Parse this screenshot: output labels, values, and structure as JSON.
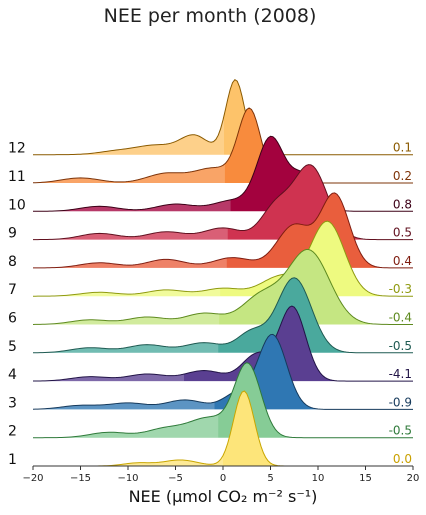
{
  "chart_data": {
    "type": "ridgeline",
    "title": "NEE per month (2008)",
    "xlabel": "NEE (µmol CO₂ m⁻² s⁻¹)",
    "xlim": [
      -20,
      20
    ],
    "xticks": [
      -20,
      -15,
      -10,
      -5,
      0,
      5,
      10,
      15,
      20
    ],
    "series": [
      {
        "month": "1",
        "value": "0.0",
        "color": "#fde57a",
        "stroke": "#c9a600",
        "text_color": "#c9a000",
        "mean": 0.0,
        "peaks": [
          [
            2.2,
            1.0,
            1.1
          ],
          [
            -4.5,
            0.08,
            1.8
          ],
          [
            -9,
            0.04,
            1.5
          ]
        ]
      },
      {
        "month": "2",
        "value": "-0.5",
        "color": "#86cc96",
        "stroke": "#2f7a3a",
        "text_color": "#2f7a3a",
        "mean": -0.5,
        "peaks": [
          [
            2.6,
            0.95,
            1.4
          ],
          [
            -1.5,
            0.25,
            2.0
          ],
          [
            -6,
            0.12,
            2.0
          ],
          [
            -12,
            0.07,
            2.0
          ]
        ]
      },
      {
        "month": "3",
        "value": "-0.9",
        "color": "#2f77b3",
        "stroke": "#163a5c",
        "text_color": "#163a5c",
        "mean": -0.9,
        "peaks": [
          [
            5.2,
            0.95,
            1.5
          ],
          [
            1.5,
            0.2,
            1.5
          ],
          [
            -4,
            0.12,
            2.0
          ],
          [
            -10,
            0.08,
            2.0
          ],
          [
            -15,
            0.05,
            2.0
          ]
        ]
      },
      {
        "month": "4",
        "value": "-4.1",
        "color": "#5a3f91",
        "stroke": "#221447",
        "text_color": "#221447",
        "mean": -4.1,
        "peaks": [
          [
            7.3,
            0.85,
            1.4
          ],
          [
            3.5,
            0.3,
            1.5
          ],
          [
            -2,
            0.12,
            2.0
          ],
          [
            -8,
            0.08,
            2.0
          ],
          [
            -14,
            0.05,
            2.0
          ]
        ]
      },
      {
        "month": "5",
        "value": "-0.5",
        "color": "#4aa99d",
        "stroke": "#1f5a52",
        "text_color": "#1f5a52",
        "mean": -0.5,
        "peaks": [
          [
            7.5,
            0.75,
            1.8
          ],
          [
            3.0,
            0.2,
            1.5
          ],
          [
            -2,
            0.1,
            2.0
          ],
          [
            -8,
            0.08,
            2.0
          ],
          [
            -14,
            0.05,
            2.0
          ]
        ]
      },
      {
        "month": "6",
        "value": "-0.4",
        "color": "#c5e682",
        "stroke": "#5e8a1f",
        "text_color": "#5e8a1f",
        "mean": -0.4,
        "peaks": [
          [
            9.0,
            0.8,
            2.2
          ],
          [
            4.0,
            0.3,
            2.0
          ],
          [
            -2,
            0.12,
            2.0
          ],
          [
            -8,
            0.08,
            2.0
          ],
          [
            -14,
            0.05,
            2.0
          ]
        ]
      },
      {
        "month": "7",
        "value": "-0.3",
        "color": "#eefa80",
        "stroke": "#8f9a10",
        "text_color": "#8f9a10",
        "mean": -0.3,
        "peaks": [
          [
            11.0,
            0.95,
            1.8
          ],
          [
            6.0,
            0.25,
            2.0
          ],
          [
            0,
            0.1,
            2.0
          ],
          [
            -6,
            0.08,
            2.0
          ],
          [
            -13,
            0.05,
            2.0
          ]
        ]
      },
      {
        "month": "8",
        "value": "0.4",
        "color": "#e95e3d",
        "stroke": "#7f1d10",
        "text_color": "#7f1d10",
        "mean": 0.4,
        "peaks": [
          [
            11.8,
            0.85,
            1.5
          ],
          [
            7.5,
            0.5,
            1.8
          ],
          [
            1,
            0.12,
            2.0
          ],
          [
            -6,
            0.1,
            2.0
          ],
          [
            -13,
            0.06,
            2.0
          ]
        ]
      },
      {
        "month": "9",
        "value": "0.5",
        "color": "#cf3350",
        "stroke": "#61101f",
        "text_color": "#61101f",
        "mean": 0.5,
        "peaks": [
          [
            9.2,
            0.95,
            1.8
          ],
          [
            5.5,
            0.4,
            1.5
          ],
          [
            0,
            0.15,
            2.0
          ],
          [
            -6,
            0.1,
            2.0
          ],
          [
            -13,
            0.08,
            2.0
          ]
        ]
      },
      {
        "month": "10",
        "value": "0.8",
        "color": "#a3023e",
        "stroke": "#3d0017",
        "text_color": "#3d0017",
        "mean": 0.8,
        "peaks": [
          [
            5.0,
            1.0,
            1.4
          ],
          [
            8.5,
            0.5,
            1.5
          ],
          [
            1,
            0.15,
            2.0
          ],
          [
            -5,
            0.1,
            2.0
          ],
          [
            -13,
            0.07,
            2.0
          ]
        ]
      },
      {
        "month": "11",
        "value": "0.2",
        "color": "#f88b3d",
        "stroke": "#7e3409",
        "text_color": "#7e3409",
        "mean": 0.2,
        "peaks": [
          [
            2.8,
            1.0,
            1.2
          ],
          [
            -1,
            0.2,
            2.0
          ],
          [
            -6,
            0.13,
            2.0
          ],
          [
            -15,
            0.07,
            2.0
          ]
        ]
      },
      {
        "month": "12",
        "value": "0.1",
        "color": "#fdc36a",
        "stroke": "#8a5a00",
        "text_color": "#8a5a00",
        "mean": 0.1,
        "peaks": [
          [
            1.3,
            1.0,
            1.0
          ],
          [
            -3.0,
            0.25,
            1.5
          ],
          [
            -7,
            0.12,
            2.0
          ],
          [
            -11,
            0.05,
            2.0
          ]
        ]
      }
    ]
  }
}
